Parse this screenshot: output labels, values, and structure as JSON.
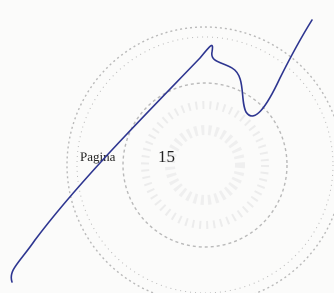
{
  "page": {
    "label": "Pagina",
    "number": 15
  }
}
